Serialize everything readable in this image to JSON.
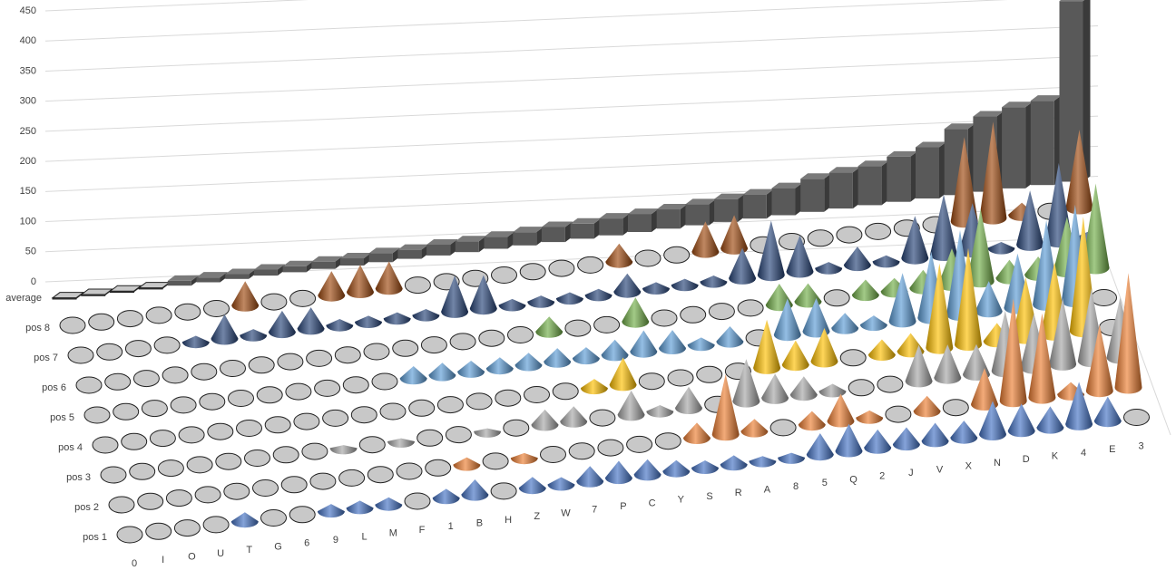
{
  "chart_data": {
    "type": "cone3d",
    "categories": [
      "0",
      "I",
      "O",
      "U",
      "T",
      "G",
      "6",
      "9",
      "L",
      "M",
      "F",
      "1",
      "B",
      "H",
      "Z",
      "W",
      "7",
      "P",
      "C",
      "Y",
      "S",
      "R",
      "A",
      "8",
      "5",
      "Q",
      "2",
      "J",
      "V",
      "X",
      "N",
      "D",
      "K",
      "4",
      "E",
      "3"
    ],
    "series": [
      {
        "name": "pos 1",
        "color": "#4472c4",
        "values": [
          0,
          0,
          0,
          0,
          15,
          0,
          0,
          12,
          12,
          12,
          0,
          15,
          25,
          0,
          18,
          12,
          25,
          28,
          25,
          18,
          12,
          15,
          8,
          8,
          35,
          45,
          30,
          28,
          30,
          28,
          55,
          45,
          35,
          70,
          40,
          0
        ]
      },
      {
        "name": "pos 2",
        "color": "#ed7d31",
        "values": [
          0,
          0,
          0,
          0,
          0,
          0,
          0,
          0,
          0,
          0,
          0,
          0,
          12,
          0,
          8,
          0,
          0,
          0,
          0,
          0,
          25,
          100,
          20,
          0,
          22,
          45,
          12,
          0,
          25,
          0,
          60,
          170,
          140,
          20,
          110,
          190
        ]
      },
      {
        "name": "pos 3",
        "color": "#a5a5a5",
        "values": [
          0,
          0,
          0,
          0,
          0,
          0,
          0,
          0,
          5,
          0,
          5,
          0,
          0,
          5,
          0,
          25,
          25,
          0,
          40,
          10,
          35,
          0,
          70,
          40,
          30,
          12,
          0,
          0,
          60,
          55,
          50,
          100,
          90,
          110,
          120,
          100
        ]
      },
      {
        "name": "pos 4",
        "color": "#ffc000",
        "values": [
          0,
          0,
          0,
          0,
          0,
          0,
          0,
          0,
          0,
          0,
          0,
          0,
          0,
          0,
          0,
          0,
          0,
          15,
          45,
          0,
          0,
          0,
          0,
          80,
          40,
          55,
          0,
          25,
          30,
          140,
          160,
          30,
          100,
          120,
          190,
          0
        ]
      },
      {
        "name": "pos 5",
        "color": "#5b9bd5",
        "values": [
          0,
          0,
          0,
          0,
          0,
          0,
          0,
          0,
          0,
          0,
          0,
          20,
          20,
          18,
          18,
          20,
          22,
          18,
          25,
          35,
          30,
          12,
          25,
          0,
          60,
          55,
          25,
          15,
          80,
          110,
          140,
          50,
          90,
          140,
          160,
          0
        ]
      },
      {
        "name": "pos 6",
        "color": "#70ad47",
        "values": [
          0,
          0,
          0,
          0,
          0,
          0,
          0,
          0,
          0,
          0,
          0,
          0,
          0,
          0,
          0,
          0,
          25,
          0,
          0,
          40,
          0,
          0,
          0,
          0,
          35,
          30,
          0,
          25,
          22,
          30,
          60,
          120,
          30,
          30,
          90,
          140
        ]
      },
      {
        "name": "pos 7",
        "color": "#264478",
        "values": [
          0,
          0,
          0,
          0,
          10,
          40,
          10,
          35,
          35,
          10,
          10,
          10,
          10,
          60,
          55,
          10,
          10,
          10,
          10,
          30,
          10,
          10,
          10,
          50,
          90,
          60,
          10,
          30,
          10,
          70,
          100,
          80,
          10,
          90,
          130,
          10
        ]
      },
      {
        "name": "pos 8",
        "color": "#9e480e",
        "values": [
          0,
          0,
          0,
          0,
          0,
          0,
          40,
          0,
          0,
          40,
          45,
          45,
          0,
          0,
          0,
          0,
          0,
          0,
          0,
          30,
          0,
          0,
          50,
          55,
          0,
          0,
          0,
          0,
          0,
          0,
          0,
          140,
          160,
          20,
          0,
          130
        ]
      },
      {
        "name": "average",
        "color": "#595959",
        "values": [
          2,
          2,
          2,
          2,
          8,
          8,
          8,
          10,
          10,
          12,
          12,
          15,
          15,
          18,
          18,
          20,
          22,
          25,
          25,
          28,
          30,
          32,
          35,
          38,
          40,
          45,
          55,
          60,
          65,
          75,
          85,
          110,
          125,
          135,
          140,
          300
        ]
      }
    ],
    "ylim": [
      0,
      450
    ],
    "yticks": [
      0,
      50,
      100,
      150,
      200,
      250,
      300,
      350,
      400,
      450
    ],
    "grid": true
  }
}
